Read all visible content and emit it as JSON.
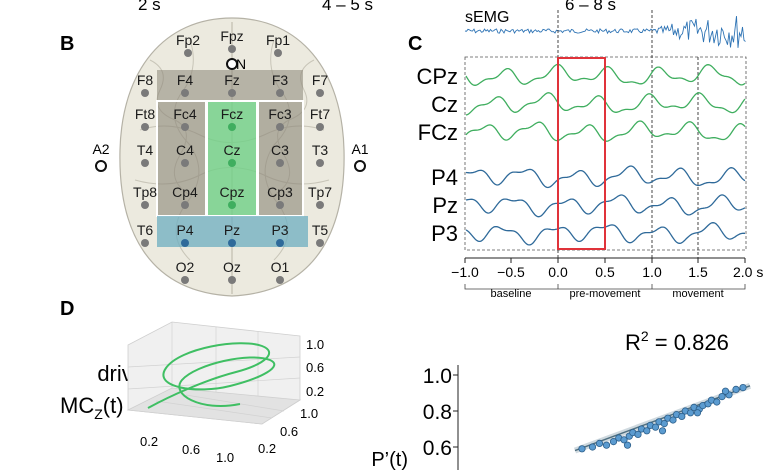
{
  "top_captions": [
    "2 s",
    "4 – 5 s",
    "6 – 8 s"
  ],
  "panels": {
    "B": "B",
    "C": "C",
    "D": "D"
  },
  "head": {
    "electrodes": [
      {
        "name": "Fp2"
      },
      {
        "name": "Fpz"
      },
      {
        "name": "Fp1"
      },
      {
        "name": "N"
      },
      {
        "name": "F8"
      },
      {
        "name": "F4"
      },
      {
        "name": "Fz"
      },
      {
        "name": "F3"
      },
      {
        "name": "F7"
      },
      {
        "name": "Ft8"
      },
      {
        "name": "Fc4"
      },
      {
        "name": "Fcz"
      },
      {
        "name": "Fc3"
      },
      {
        "name": "Ft7"
      },
      {
        "name": "A2"
      },
      {
        "name": "T4"
      },
      {
        "name": "C4"
      },
      {
        "name": "Cz"
      },
      {
        "name": "C3"
      },
      {
        "name": "T3"
      },
      {
        "name": "A1"
      },
      {
        "name": "Tp8"
      },
      {
        "name": "Cp4"
      },
      {
        "name": "Cpz"
      },
      {
        "name": "Cp3"
      },
      {
        "name": "Tp7"
      },
      {
        "name": "T6"
      },
      {
        "name": "P4"
      },
      {
        "name": "Pz"
      },
      {
        "name": "P3"
      },
      {
        "name": "T5"
      },
      {
        "name": "O2"
      },
      {
        "name": "Oz"
      },
      {
        "name": "O1"
      }
    ]
  },
  "traces": {
    "semg_label": "sEMG",
    "channels": [
      "CPz",
      "Cz",
      "FCz",
      "P4",
      "Pz",
      "P3"
    ],
    "x_ticks": [
      "−1.0",
      "−0.5",
      "0.0",
      "0.5",
      "1.0",
      "1.5",
      "2.0 s"
    ],
    "segments": [
      "baseline",
      "pre-movement",
      "movement"
    ],
    "colors": {
      "green": "#3fae5f",
      "blue": "#2f6a9a",
      "highlight": "#e0333a"
    }
  },
  "panel_d": {
    "drive_label": "drive",
    "mc_label": "MC",
    "mc_sub": "Z",
    "mc_suffix": "(t)",
    "z_ticks": [
      "1.0",
      "0.6",
      "0.2"
    ],
    "y_ticks": [
      "1.0",
      "0.6",
      "0.2"
    ],
    "x_ticks": [
      "0.2",
      "0.6",
      "1.0"
    ]
  },
  "scatter": {
    "r2": "R",
    "r2_sup": "2",
    "r2_value": " = 0.826",
    "y_label": "P’(t)",
    "y_ticks": [
      "1.0",
      "0.8",
      "0.6"
    ],
    "chart_data": {
      "type": "scatter",
      "ylabel": "P’(t)",
      "annotation": "R2 = 0.826",
      "y_ticks": [
        1.0,
        0.8,
        0.6
      ],
      "points": [
        [
          0.04,
          0.59
        ],
        [
          0.1,
          0.6
        ],
        [
          0.14,
          0.62
        ],
        [
          0.18,
          0.61
        ],
        [
          0.22,
          0.63
        ],
        [
          0.25,
          0.65
        ],
        [
          0.28,
          0.64
        ],
        [
          0.31,
          0.66
        ],
        [
          0.33,
          0.68
        ],
        [
          0.36,
          0.67
        ],
        [
          0.38,
          0.7
        ],
        [
          0.41,
          0.69
        ],
        [
          0.43,
          0.72
        ],
        [
          0.46,
          0.71
        ],
        [
          0.48,
          0.74
        ],
        [
          0.51,
          0.73
        ],
        [
          0.53,
          0.76
        ],
        [
          0.56,
          0.75
        ],
        [
          0.58,
          0.78
        ],
        [
          0.61,
          0.77
        ],
        [
          0.63,
          0.8
        ],
        [
          0.66,
          0.79
        ],
        [
          0.68,
          0.82
        ],
        [
          0.71,
          0.81
        ],
        [
          0.73,
          0.83
        ],
        [
          0.76,
          0.84
        ],
        [
          0.78,
          0.86
        ],
        [
          0.81,
          0.85
        ],
        [
          0.84,
          0.88
        ],
        [
          0.88,
          0.89
        ],
        [
          0.92,
          0.92
        ],
        [
          0.96,
          0.93
        ],
        [
          0.3,
          0.61
        ],
        [
          0.5,
          0.69
        ],
        [
          0.7,
          0.79
        ],
        [
          0.86,
          0.91
        ]
      ],
      "fit": [
        [
          0.0,
          0.58
        ],
        [
          1.0,
          0.94
        ]
      ]
    }
  }
}
